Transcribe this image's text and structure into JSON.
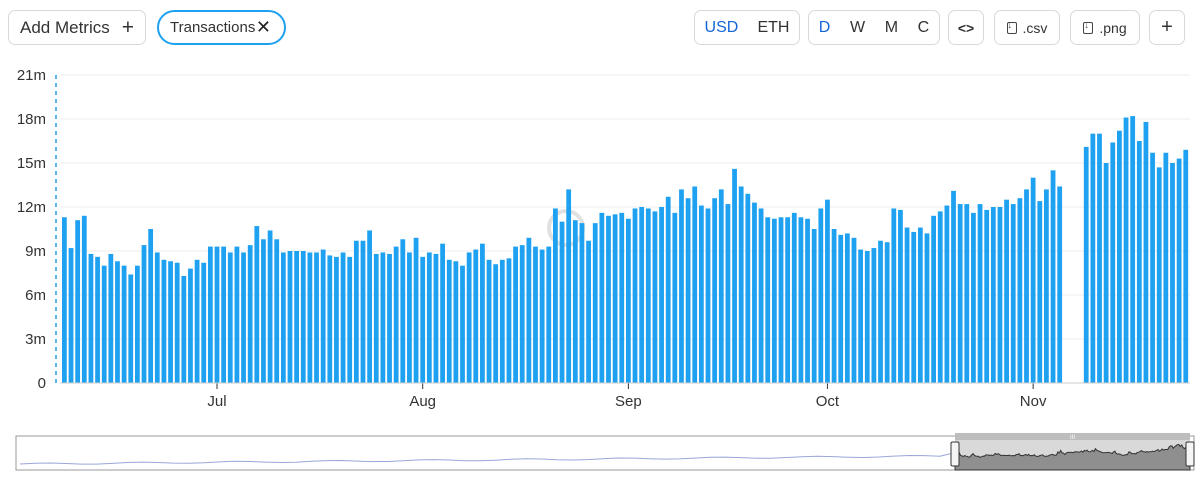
{
  "toolbar": {
    "add_metrics_label": "Add Metrics",
    "add_icon": "plus-icon",
    "metric_chip_label": "Transactions",
    "metric_chip_close_icon": "close-icon",
    "currency_options": [
      "USD",
      "ETH"
    ],
    "currency_selected": "USD",
    "period_options": [
      "D",
      "W",
      "M",
      "C"
    ],
    "period_selected": "D",
    "embed_icon": "code-icon",
    "embed_label": "<>",
    "csv_label": ".csv",
    "csv_icon": "download-file-icon",
    "png_label": ".png",
    "png_icon": "download-file-icon",
    "more_label": "+",
    "accent_color": "#1ea1f1",
    "active_color": "#1565d8"
  },
  "chart_data": {
    "type": "bar",
    "series": [
      {
        "values": [
          11.3,
          9.2,
          11.1,
          11.4,
          8.8,
          8.6,
          8.0,
          8.8,
          8.3,
          8.0,
          7.4,
          8.0,
          9.4,
          10.5,
          8.9,
          8.4,
          8.3,
          8.2,
          7.3,
          7.8,
          8.4,
          8.2,
          9.3,
          9.3,
          9.3,
          8.9,
          9.3,
          8.9,
          9.4,
          10.7,
          9.8,
          10.4,
          9.8,
          8.9,
          9.0,
          9.0,
          9.0,
          8.9,
          8.9,
          9.1,
          8.7,
          8.6,
          8.9,
          8.6,
          9.7,
          9.7,
          10.4,
          8.8,
          8.9,
          8.8,
          9.3,
          9.8,
          8.9,
          9.9,
          8.6,
          8.9,
          8.8,
          9.5,
          8.4,
          8.3,
          8.0,
          8.9,
          9.1,
          9.5,
          8.4,
          8.1,
          8.4,
          8.5,
          9.3,
          9.4,
          9.9,
          9.3,
          9.1,
          9.3,
          11.9,
          11.0,
          13.2,
          11.1,
          10.9,
          9.7,
          10.9,
          11.6,
          11.4,
          11.5,
          11.6,
          11.2,
          11.9,
          12.0,
          11.9,
          11.7,
          12.0,
          12.7,
          11.6,
          13.2,
          12.6,
          13.4,
          12.1,
          11.9,
          12.6,
          13.2,
          12.2,
          14.6,
          13.4,
          12.9,
          12.3,
          11.9,
          11.3,
          11.2,
          11.3,
          11.3,
          11.6,
          11.3,
          11.2,
          10.5,
          11.9,
          12.5,
          10.5,
          10.1,
          10.2,
          9.9,
          9.1,
          9.0,
          9.2,
          9.7,
          9.6,
          11.9,
          11.8,
          10.6,
          10.3,
          10.6,
          10.2,
          11.4,
          11.7,
          12.1,
          13.1,
          12.2,
          12.2,
          11.6,
          12.2,
          11.8,
          12.0,
          12.0,
          12.5,
          12.2,
          12.6,
          13.2,
          14.0,
          12.4,
          13.2,
          14.5,
          13.4,
          null,
          null,
          null,
          16.1,
          17.0,
          17.0,
          15.0,
          16.4,
          17.2,
          18.1,
          18.2,
          16.5,
          17.8,
          15.7,
          14.7,
          15.7,
          15.0,
          15.3,
          15.9
        ]
      }
    ],
    "x_start": "2023-06-08",
    "x_tick_labels": [
      "Jul",
      "Aug",
      "Sep",
      "Oct",
      "Nov"
    ],
    "y_tick_labels": [
      "0",
      "3m",
      "6m",
      "9m",
      "12m",
      "15m",
      "18m",
      "21m"
    ],
    "ylim": [
      0,
      21000000
    ],
    "bar_color": "#1ea1f1",
    "grid": true,
    "watermark": "DefiLlama"
  },
  "navigator": {
    "handle_label": "III"
  }
}
